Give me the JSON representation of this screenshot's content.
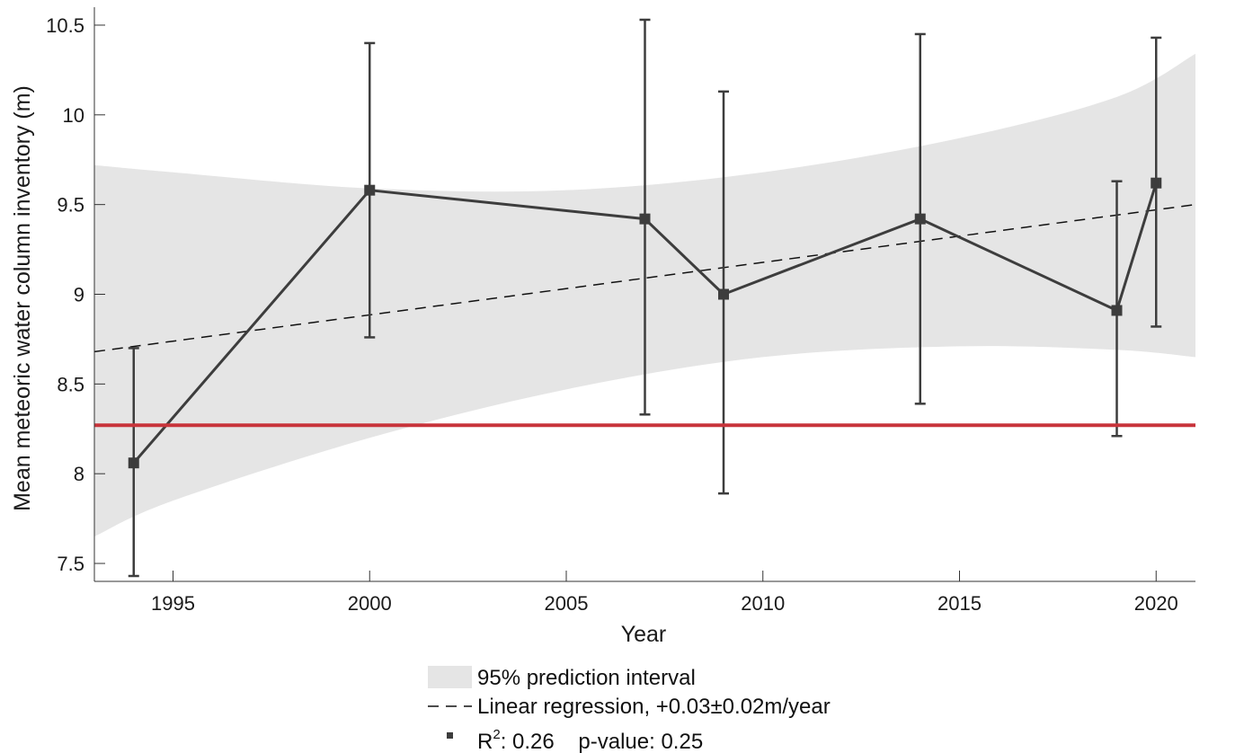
{
  "chart_data": {
    "type": "line",
    "xlabel": "Year",
    "ylabel": "Mean meteoric water column inventory (m)",
    "xlim": [
      1993,
      2021
    ],
    "ylim": [
      7.4,
      10.6
    ],
    "x_ticks": [
      1995,
      2000,
      2005,
      2010,
      2015,
      2020
    ],
    "x_tick_labels": [
      "1995",
      "2000",
      "2005",
      "2010",
      "2015",
      "2020"
    ],
    "y_ticks": [
      7.5,
      8,
      8.5,
      9,
      9.5,
      10,
      10.5
    ],
    "y_tick_labels": [
      "7.5",
      "8",
      "8.5",
      "9",
      "9.5",
      "10",
      "10.5"
    ],
    "grid": false,
    "legend_position": "bottom",
    "series": [
      {
        "x": [
          1994,
          2000,
          2007,
          2009,
          2014,
          2019,
          2020
        ],
        "y": [
          8.06,
          9.58,
          9.42,
          9.0,
          9.42,
          8.91,
          9.62
        ],
        "err_low": [
          7.43,
          8.76,
          8.33,
          7.89,
          8.39,
          8.21,
          8.82
        ],
        "err_high": [
          8.7,
          10.4,
          10.53,
          10.13,
          10.45,
          9.63,
          10.43
        ],
        "color": "#3d3d3d"
      }
    ],
    "prediction_interval": {
      "x": [
        1993,
        1995,
        2000,
        2005,
        2010,
        2015,
        2019,
        2021
      ],
      "lower": [
        7.65,
        7.85,
        8.2,
        8.47,
        8.65,
        8.71,
        8.69,
        8.65
      ],
      "upper": [
        9.72,
        9.68,
        9.59,
        9.58,
        9.68,
        9.87,
        10.1,
        10.34
      ],
      "color": "#e5e5e5"
    },
    "regression": {
      "x": [
        1993,
        2021
      ],
      "y": [
        8.68,
        9.5
      ],
      "color": "#111111"
    },
    "reference_line": {
      "y": 8.27,
      "color": "#c8343b"
    },
    "legend": {
      "interval_label": "95% prediction interval",
      "regression_label": "Linear regression, +0.03±0.02m/year",
      "stats_r": "R",
      "stats_sup": "2",
      "stats_rest": ": 0.26    p-value: 0.25"
    }
  }
}
